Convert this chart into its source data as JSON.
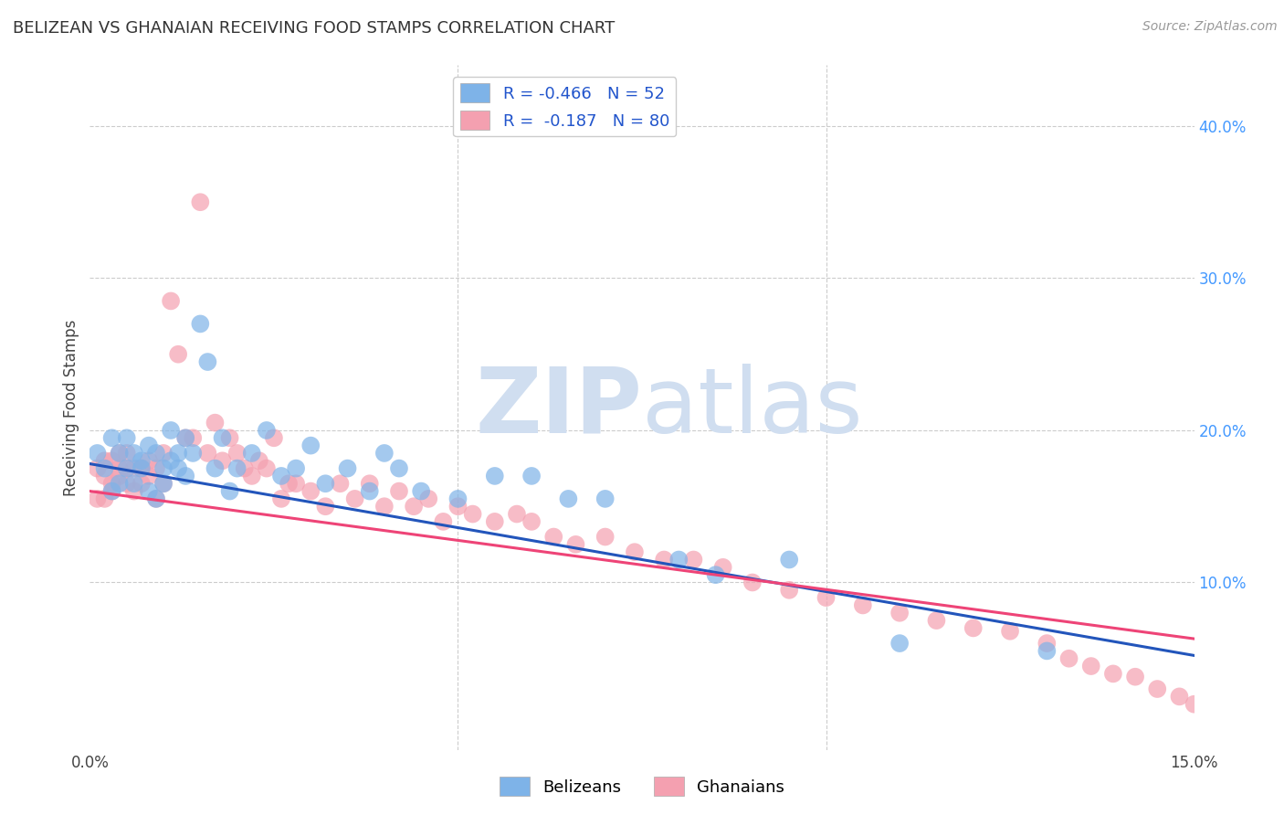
{
  "title": "BELIZEAN VS GHANAIAN RECEIVING FOOD STAMPS CORRELATION CHART",
  "source": "Source: ZipAtlas.com",
  "ylabel": "Receiving Food Stamps",
  "right_yticks": [
    "40.0%",
    "30.0%",
    "20.0%",
    "10.0%"
  ],
  "right_ytick_vals": [
    0.4,
    0.3,
    0.2,
    0.1
  ],
  "xlim": [
    0.0,
    0.15
  ],
  "ylim": [
    -0.01,
    0.44
  ],
  "legend_blue_label": "R = -0.466   N = 52",
  "legend_pink_label": "R =  -0.187   N = 80",
  "belizean_color": "#7EB3E8",
  "ghanaian_color": "#F4A0B0",
  "trend_blue": "#2255BB",
  "trend_pink": "#EE4477",
  "watermark_zip": "ZIP",
  "watermark_atlas": "atlas",
  "watermark_color": "#D0DEF0",
  "bg_color": "#FFFFFF",
  "grid_color": "#CCCCCC",
  "belizean_scatter_x": [
    0.001,
    0.002,
    0.003,
    0.003,
    0.004,
    0.004,
    0.005,
    0.005,
    0.006,
    0.006,
    0.007,
    0.007,
    0.008,
    0.008,
    0.009,
    0.009,
    0.01,
    0.01,
    0.011,
    0.011,
    0.012,
    0.012,
    0.013,
    0.013,
    0.014,
    0.015,
    0.016,
    0.017,
    0.018,
    0.019,
    0.02,
    0.022,
    0.024,
    0.026,
    0.028,
    0.03,
    0.032,
    0.035,
    0.038,
    0.04,
    0.042,
    0.045,
    0.05,
    0.055,
    0.06,
    0.065,
    0.07,
    0.08,
    0.085,
    0.095,
    0.11,
    0.13
  ],
  "belizean_scatter_y": [
    0.185,
    0.175,
    0.195,
    0.16,
    0.185,
    0.165,
    0.195,
    0.175,
    0.185,
    0.165,
    0.18,
    0.175,
    0.19,
    0.16,
    0.185,
    0.155,
    0.175,
    0.165,
    0.2,
    0.18,
    0.185,
    0.175,
    0.195,
    0.17,
    0.185,
    0.27,
    0.245,
    0.175,
    0.195,
    0.16,
    0.175,
    0.185,
    0.2,
    0.17,
    0.175,
    0.19,
    0.165,
    0.175,
    0.16,
    0.185,
    0.175,
    0.16,
    0.155,
    0.17,
    0.17,
    0.155,
    0.155,
    0.115,
    0.105,
    0.115,
    0.06,
    0.055
  ],
  "ghanaian_scatter_x": [
    0.001,
    0.001,
    0.002,
    0.002,
    0.002,
    0.003,
    0.003,
    0.003,
    0.004,
    0.004,
    0.004,
    0.005,
    0.005,
    0.005,
    0.006,
    0.006,
    0.007,
    0.007,
    0.008,
    0.008,
    0.009,
    0.009,
    0.01,
    0.01,
    0.011,
    0.012,
    0.013,
    0.014,
    0.015,
    0.016,
    0.017,
    0.018,
    0.019,
    0.02,
    0.021,
    0.022,
    0.023,
    0.024,
    0.025,
    0.026,
    0.027,
    0.028,
    0.03,
    0.032,
    0.034,
    0.036,
    0.038,
    0.04,
    0.042,
    0.044,
    0.046,
    0.048,
    0.05,
    0.052,
    0.055,
    0.058,
    0.06,
    0.063,
    0.066,
    0.07,
    0.074,
    0.078,
    0.082,
    0.086,
    0.09,
    0.095,
    0.1,
    0.105,
    0.11,
    0.115,
    0.12,
    0.125,
    0.13,
    0.133,
    0.136,
    0.139,
    0.142,
    0.145,
    0.148,
    0.15
  ],
  "ghanaian_scatter_y": [
    0.175,
    0.155,
    0.17,
    0.155,
    0.18,
    0.165,
    0.16,
    0.18,
    0.17,
    0.185,
    0.175,
    0.165,
    0.175,
    0.185,
    0.175,
    0.16,
    0.175,
    0.165,
    0.18,
    0.17,
    0.155,
    0.175,
    0.185,
    0.165,
    0.285,
    0.25,
    0.195,
    0.195,
    0.35,
    0.185,
    0.205,
    0.18,
    0.195,
    0.185,
    0.175,
    0.17,
    0.18,
    0.175,
    0.195,
    0.155,
    0.165,
    0.165,
    0.16,
    0.15,
    0.165,
    0.155,
    0.165,
    0.15,
    0.16,
    0.15,
    0.155,
    0.14,
    0.15,
    0.145,
    0.14,
    0.145,
    0.14,
    0.13,
    0.125,
    0.13,
    0.12,
    0.115,
    0.115,
    0.11,
    0.1,
    0.095,
    0.09,
    0.085,
    0.08,
    0.075,
    0.07,
    0.068,
    0.06,
    0.05,
    0.045,
    0.04,
    0.038,
    0.03,
    0.025,
    0.02
  ],
  "bottom_labels": [
    "Belizeans",
    "Ghanaians"
  ],
  "blue_trend_x0": 0.0,
  "blue_trend_y0": 0.178,
  "blue_trend_x1": 0.15,
  "blue_trend_y1": 0.052,
  "pink_trend_x0": 0.0,
  "pink_trend_y0": 0.16,
  "pink_trend_x1": 0.15,
  "pink_trend_y1": 0.063
}
